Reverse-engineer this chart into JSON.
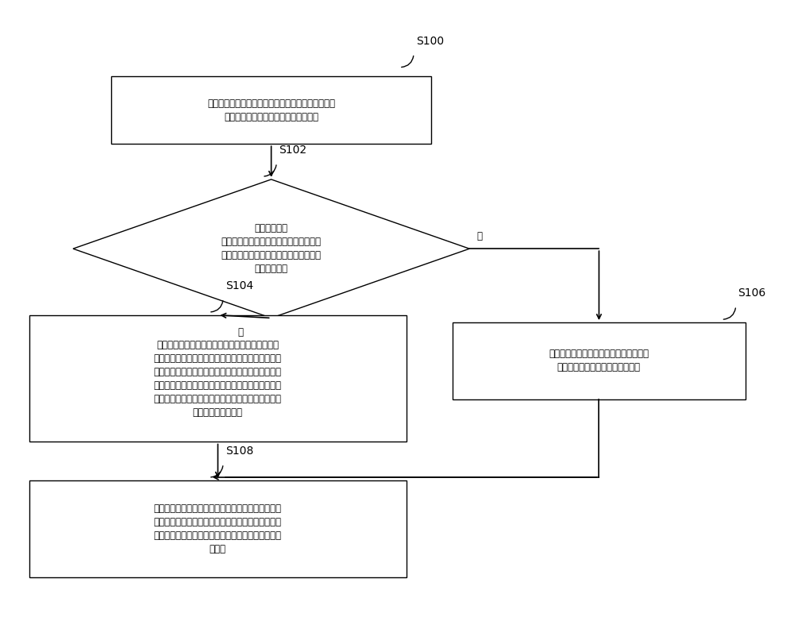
{
  "bg_color": "#ffffff",
  "text_color": "#000000",
  "font_size": 8.5,
  "label_font_size": 10,
  "s100_text": "响应于确定唯一标识的指令，遍历待测试程序的源代\n码，确定所述待测试程序的各活动页面",
  "s102_text": "针对每个活动\n页面，根据该活动页面包含的页面生成信\n息，通过错点工具，确定该活动页面是否\n包含下级页面",
  "s104_text": "确定所述下级页面的类型，当所述下级页面的类型\n为网页页面时，确定所述网页页面对应的统一资源定\n位符和网页参数，作为所述待测试程序的页面唯一标\n识；当所述下级页面的类型不是网页页面时，确定所\n述下级页面对应的类名和页面参数，作为所述待测试\n程序的页面唯一标识",
  "s106_text": "根据该活动页面的类名以及该活动页面的\n页面参数，确定所述页面唯一标识",
  "s108_text": "存储确定出的该活动页面的页面唯一标识，并在所述\n源代码的该活动页面的生成代码中添加错点，使得程\n序测试时通过所述错点工具确定被测试程序的页面唯\n一标识",
  "yes_label": "是",
  "no_label": "否"
}
